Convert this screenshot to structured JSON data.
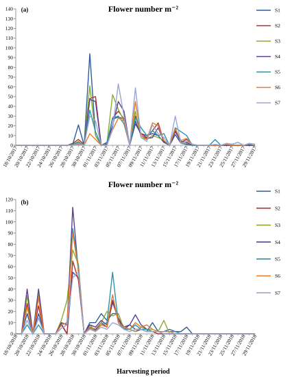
{
  "chart_data": [
    {
      "type": "line",
      "panel_label": "(a)",
      "title": "Flower number m⁻²",
      "xlabel": "",
      "ylabel": "",
      "ylim": [
        0,
        140
      ],
      "yticks": [
        0,
        10,
        20,
        30,
        40,
        50,
        60,
        70,
        80,
        90,
        100,
        110,
        120,
        130,
        140
      ],
      "x": [
        "18/10/2017",
        "19/10/2017",
        "20/10/2017",
        "21/10/2017",
        "22/10/2017",
        "23/10/2017",
        "24/10/2017",
        "25/10/2017",
        "26/10/2017",
        "27/10/2017",
        "28/10/2017",
        "29/10/2017",
        "30/10/2017",
        "31/10/2017",
        "01/11/2017",
        "02/11/2017",
        "03/11/2017",
        "04/11/2017",
        "05/11/2017",
        "06/11/2017",
        "07/11/2017",
        "08/11/2017",
        "09/11/2017",
        "10/11/2017",
        "11/11/2017",
        "12/11/2017",
        "13/11/2017",
        "14/11/2017",
        "15/11/2017",
        "16/11/2017",
        "17/11/2017",
        "18/11/2017",
        "19/11/2017",
        "20/11/2017",
        "21/11/2017",
        "22/11/2017",
        "23/11/2017",
        "24/11/2017",
        "25/11/2017",
        "26/11/2017",
        "27/11/2017",
        "28/11/2017",
        "29/11/2017"
      ],
      "xtick_labels": [
        "18/10/2017",
        "20/10/2017",
        "22/10/2017",
        "24/10/2017",
        "26/10/2017",
        "28/10/2017",
        "30/10/2017",
        "01/11/2017",
        "03/11/2017",
        "05/11/2017",
        "07/11/2017",
        "09/11/2017",
        "11/11/2017",
        "13/11/2017",
        "15/11/2017",
        "17/11/2017",
        "19/11/2017",
        "21/11/2017",
        "23/11/2017",
        "25/11/2017",
        "27/11/2017",
        "29/11/2017"
      ],
      "series": [
        {
          "name": "S1",
          "color": "#2e5b9a",
          "values": [
            0,
            0,
            0,
            0,
            0,
            0,
            0,
            0,
            0,
            0,
            1,
            21,
            0,
            94,
            10,
            0,
            1,
            27,
            29,
            27,
            0,
            22,
            12,
            10,
            12,
            10,
            3,
            0,
            11,
            2,
            1,
            0,
            0,
            0,
            0,
            0,
            0,
            0,
            0,
            0,
            0,
            0,
            0
          ]
        },
        {
          "name": "S2",
          "color": "#b52a2a",
          "values": [
            0,
            0,
            0,
            0,
            0,
            0,
            0,
            0,
            0,
            0,
            2,
            6,
            1,
            48,
            50,
            0,
            1,
            28,
            35,
            27,
            0,
            30,
            12,
            8,
            15,
            23,
            4,
            0,
            15,
            3,
            6,
            1,
            0,
            0,
            0,
            0,
            0,
            0,
            0,
            0,
            0,
            0,
            0
          ]
        },
        {
          "name": "S3",
          "color": "#8aab2f",
          "values": [
            0,
            0,
            0,
            0,
            0,
            0,
            0,
            0,
            0,
            0,
            1,
            4,
            0,
            61,
            10,
            0,
            2,
            52,
            37,
            25,
            0,
            35,
            8,
            6,
            10,
            8,
            5,
            0,
            18,
            2,
            2,
            0,
            0,
            0,
            0,
            0,
            0,
            0,
            0,
            0,
            0,
            0,
            0
          ]
        },
        {
          "name": "S4",
          "color": "#5b3e8c",
          "values": [
            0,
            0,
            0,
            0,
            0,
            0,
            0,
            0,
            0,
            0,
            1,
            2,
            0,
            47,
            45,
            0,
            3,
            20,
            45,
            35,
            0,
            25,
            10,
            7,
            8,
            18,
            4,
            0,
            14,
            4,
            3,
            0,
            0,
            0,
            0,
            0,
            0,
            0,
            0,
            0,
            0,
            0,
            0
          ]
        },
        {
          "name": "S5",
          "color": "#2a93ad",
          "values": [
            0,
            0,
            0,
            0,
            0,
            0,
            0,
            0,
            0,
            0,
            1,
            3,
            0,
            36,
            14,
            0,
            2,
            28,
            30,
            22,
            0,
            28,
            18,
            10,
            15,
            10,
            12,
            0,
            18,
            14,
            10,
            0,
            0,
            0,
            0,
            6,
            0,
            2,
            1,
            3,
            0,
            1,
            0
          ]
        },
        {
          "name": "S6",
          "color": "#e27c2b",
          "values": [
            0,
            0,
            0,
            0,
            0,
            0,
            0,
            0,
            0,
            0,
            0,
            1,
            0,
            12,
            6,
            0,
            0,
            16,
            28,
            25,
            0,
            45,
            10,
            6,
            23,
            20,
            5,
            0,
            17,
            5,
            7,
            1,
            0,
            0,
            0,
            0,
            0,
            1,
            0,
            0,
            0,
            2,
            1
          ]
        },
        {
          "name": "S7",
          "color": "#9aa6d4",
          "values": [
            0,
            0,
            0,
            0,
            0,
            0,
            0,
            0,
            0,
            0,
            0,
            2,
            0,
            30,
            25,
            0,
            0,
            17,
            63,
            30,
            0,
            59,
            8,
            4,
            21,
            12,
            8,
            0,
            30,
            2,
            4,
            1,
            0,
            0,
            0,
            1,
            0,
            2,
            1,
            3,
            0,
            2,
            0
          ]
        }
      ]
    },
    {
      "type": "line",
      "panel_label": "(b)",
      "title": "Flower number m⁻²",
      "xlabel": "Harvesting period",
      "ylabel": "",
      "ylim": [
        0,
        120
      ],
      "yticks": [
        0,
        10,
        20,
        30,
        40,
        50,
        60,
        70,
        80,
        90,
        100,
        110,
        120
      ],
      "x": [
        "18/10/2018",
        "19/10/2018",
        "20/10/2018",
        "21/10/2018",
        "22/10/2018",
        "23/10/2018",
        "24/10/2018",
        "25/10/2018",
        "26/10/2018",
        "27/10/2018",
        "28/10/2018",
        "29/10/2018",
        "30/10/2018",
        "31/10/2018",
        "01/11/2018",
        "02/11/2018",
        "03/11/2018",
        "04/11/2018",
        "05/11/2018",
        "06/11/2018",
        "07/11/2018",
        "08/11/2018",
        "09/11/2018",
        "10/11/2018",
        "11/11/2018",
        "12/11/2018",
        "13/11/2018",
        "14/11/2018",
        "15/11/2018",
        "16/11/2018",
        "17/11/2018",
        "18/11/2018",
        "19/11/2018",
        "20/11/2018",
        "21/11/2018",
        "22/11/2018",
        "23/11/2018",
        "24/11/2018",
        "25/11/2018",
        "26/11/2018",
        "27/11/2018",
        "28/11/2018",
        "29/11/2018"
      ],
      "xtick_labels": [
        "18/10/2018",
        "20/10/2018",
        "22/10/2018",
        "24/10/2018",
        "26/10/2018",
        "28/10/2018",
        "30/10/2018",
        "01/11/2018",
        "03/11/2018",
        "05/11/2018",
        "07/11/2018",
        "09/11/2018",
        "11/11/2018",
        "13/11/2018",
        "15/11/2018",
        "17/11/2018",
        "19/11/2018",
        "21/11/2018",
        "23/11/2018",
        "25/11/2018",
        "27/11/2018",
        "29/11/2018"
      ],
      "series": [
        {
          "name": "S1",
          "color": "#2e5b9a",
          "values": [
            0,
            0,
            18,
            0,
            18,
            0,
            0,
            0,
            9,
            0,
            55,
            50,
            0,
            10,
            10,
            18,
            12,
            18,
            18,
            4,
            8,
            4,
            4,
            2,
            10,
            2,
            2,
            4,
            2,
            2,
            6,
            0,
            0,
            0,
            0,
            0,
            0,
            0,
            0,
            0,
            0,
            0,
            0
          ]
        },
        {
          "name": "S2",
          "color": "#b52a2a",
          "values": [
            0,
            0,
            27,
            0,
            25,
            0,
            0,
            0,
            8,
            0,
            65,
            48,
            0,
            6,
            4,
            10,
            6,
            28,
            14,
            6,
            4,
            2,
            4,
            2,
            2,
            0,
            0,
            0,
            0,
            0,
            0,
            0,
            0,
            0,
            0,
            0,
            0,
            0,
            0,
            0,
            0,
            0,
            0
          ]
        },
        {
          "name": "S3",
          "color": "#8aab2f",
          "values": [
            0,
            0,
            34,
            0,
            35,
            0,
            0,
            0,
            12,
            30,
            75,
            62,
            0,
            8,
            2,
            10,
            20,
            16,
            18,
            4,
            4,
            2,
            6,
            4,
            4,
            2,
            12,
            0,
            0,
            0,
            0,
            0,
            0,
            0,
            0,
            0,
            0,
            0,
            0,
            0,
            0,
            0,
            0
          ]
        },
        {
          "name": "S4",
          "color": "#5b3e8c",
          "values": [
            0,
            0,
            40,
            0,
            40,
            0,
            0,
            0,
            10,
            8,
            113,
            55,
            0,
            8,
            6,
            12,
            8,
            30,
            12,
            6,
            8,
            17,
            8,
            4,
            2,
            2,
            0,
            0,
            0,
            0,
            0,
            0,
            0,
            0,
            0,
            0,
            0,
            0,
            0,
            0,
            0,
            0,
            0
          ]
        },
        {
          "name": "S5",
          "color": "#2a93ad",
          "values": [
            0,
            0,
            8,
            0,
            8,
            0,
            0,
            0,
            5,
            8,
            94,
            60,
            0,
            5,
            3,
            8,
            10,
            55,
            10,
            4,
            4,
            8,
            4,
            4,
            2,
            2,
            2,
            2,
            2,
            0,
            0,
            0,
            0,
            0,
            0,
            0,
            0,
            0,
            0,
            0,
            0,
            0,
            0
          ]
        },
        {
          "name": "S6",
          "color": "#e27c2b",
          "values": [
            0,
            0,
            24,
            0,
            32,
            0,
            0,
            0,
            8,
            10,
            90,
            57,
            0,
            6,
            2,
            8,
            6,
            35,
            10,
            6,
            4,
            10,
            6,
            8,
            4,
            2,
            2,
            2,
            0,
            0,
            0,
            0,
            0,
            0,
            0,
            0,
            0,
            0,
            0,
            0,
            0,
            0,
            0
          ]
        },
        {
          "name": "S7",
          "color": "#9aa6d4",
          "values": [
            0,
            0,
            12,
            0,
            14,
            0,
            0,
            0,
            5,
            8,
            50,
            55,
            0,
            4,
            2,
            6,
            4,
            10,
            8,
            4,
            2,
            4,
            4,
            2,
            2,
            2,
            0,
            0,
            0,
            0,
            0,
            0,
            0,
            0,
            0,
            0,
            0,
            0,
            0,
            0,
            0,
            0,
            0
          ]
        }
      ]
    }
  ]
}
